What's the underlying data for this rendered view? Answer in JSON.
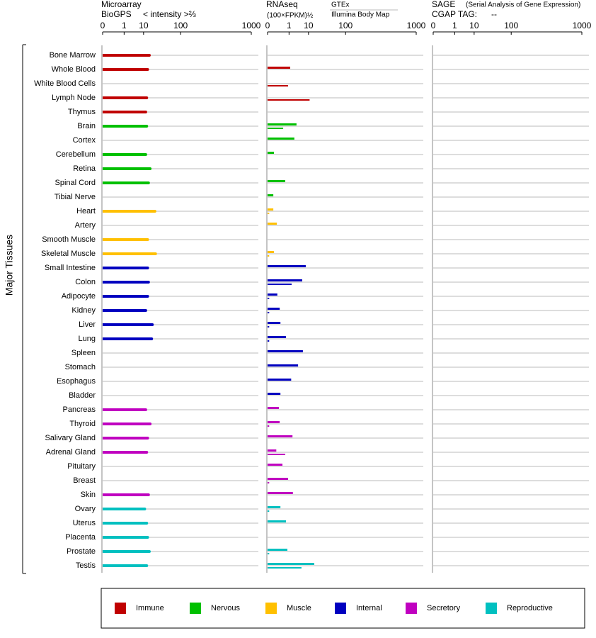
{
  "chart_data": {
    "type": "bar",
    "axis_label": "Major Tissues",
    "xscale": "power",
    "groups": [
      {
        "name": "Immune",
        "color": "#c00000",
        "categories": [
          "Bone Marrow",
          "Whole Blood",
          "White Blood Cells",
          "Lymph Node",
          "Thymus"
        ]
      },
      {
        "name": "Nervous",
        "color": "#00c000",
        "categories": [
          "Brain",
          "Cortex",
          "Cerebellum",
          "Retina",
          "Spinal Cord",
          "Tibial Nerve"
        ]
      },
      {
        "name": "Muscle",
        "color": "#ffc000",
        "categories": [
          "Heart",
          "Artery",
          "Smooth Muscle",
          "Skeletal Muscle"
        ]
      },
      {
        "name": "Internal",
        "color": "#0000c0",
        "categories": [
          "Small Intestine",
          "Colon",
          "Adipocyte",
          "Kidney",
          "Liver",
          "Lung",
          "Spleen",
          "Stomach",
          "Esophagus",
          "Bladder"
        ]
      },
      {
        "name": "Secretory",
        "color": "#c000c0",
        "categories": [
          "Pancreas",
          "Thyroid",
          "Salivary Gland",
          "Adrenal Gland",
          "Pituitary",
          "Breast",
          "Skin"
        ]
      },
      {
        "name": "Reproductive",
        "color": "#00c0c0",
        "categories": [
          "Ovary",
          "Uterus",
          "Placenta",
          "Prostate",
          "Testis"
        ]
      }
    ],
    "panels": [
      {
        "title": "Microarray",
        "unit_label": "< intensity >⅔",
        "xlim": [
          0,
          1000
        ],
        "xticks": [
          0,
          1,
          10,
          100,
          1000
        ],
        "series": [
          {
            "name": "BioGPS",
            "color": "#000080",
            "values": [
              16,
              14,
              null,
              13,
              12,
              13,
              null,
              12,
              17,
              15,
              null,
              24,
              null,
              14,
              25,
              14,
              15,
              14,
              12,
              20,
              19,
              null,
              null,
              null,
              null,
              12,
              17,
              14,
              13,
              null,
              null,
              15,
              11,
              13,
              14,
              16,
              13
            ]
          }
        ]
      },
      {
        "title": "RNAseq",
        "unit_label": "(100×FPKM)½",
        "xlim": [
          0,
          1000
        ],
        "xticks": [
          0,
          1,
          10,
          100,
          1000
        ],
        "series": [
          {
            "name": "GTEx",
            "color": "#000080",
            "values": [
              null,
              1.2,
              null,
              null,
              null,
              2.9,
              2.2,
              0.013,
              null,
              0.5,
              0.009,
              0.009,
              0.05,
              null,
              0.013,
              7.8,
              5.5,
              0.06,
              0.13,
              0.16,
              0.58,
              5.9,
              3.5,
              1.4,
              0.16,
              0.1,
              0.13,
              1.7,
              0.04,
              0.27,
              0.85,
              1.8,
              0.16,
              0.58,
              null,
              0.75,
              16
            ]
          },
          {
            "name": "Illumina Body Map",
            "color": "#000000",
            "values": [
              null,
              null,
              0.85,
              11,
              null,
              0.32,
              null,
              null,
              null,
              null,
              null,
              0.0001,
              null,
              null,
              0.0001,
              null,
              1.5,
              0.0001,
              0.0001,
              0.0001,
              0.0001,
              null,
              null,
              null,
              null,
              null,
              0.0001,
              null,
              0.5,
              null,
              0.0001,
              null,
              0.0001,
              null,
              null,
              0.0001,
              5.1
            ]
          }
        ]
      },
      {
        "title": "SAGE",
        "subtitle": "(Serial Analysis of Gene Expression)",
        "tag_label": "CGAP TAG:",
        "tag": "--",
        "xlim": [
          0,
          1000
        ],
        "xticks": [
          0,
          1,
          10,
          100,
          1000
        ],
        "series": []
      }
    ]
  }
}
